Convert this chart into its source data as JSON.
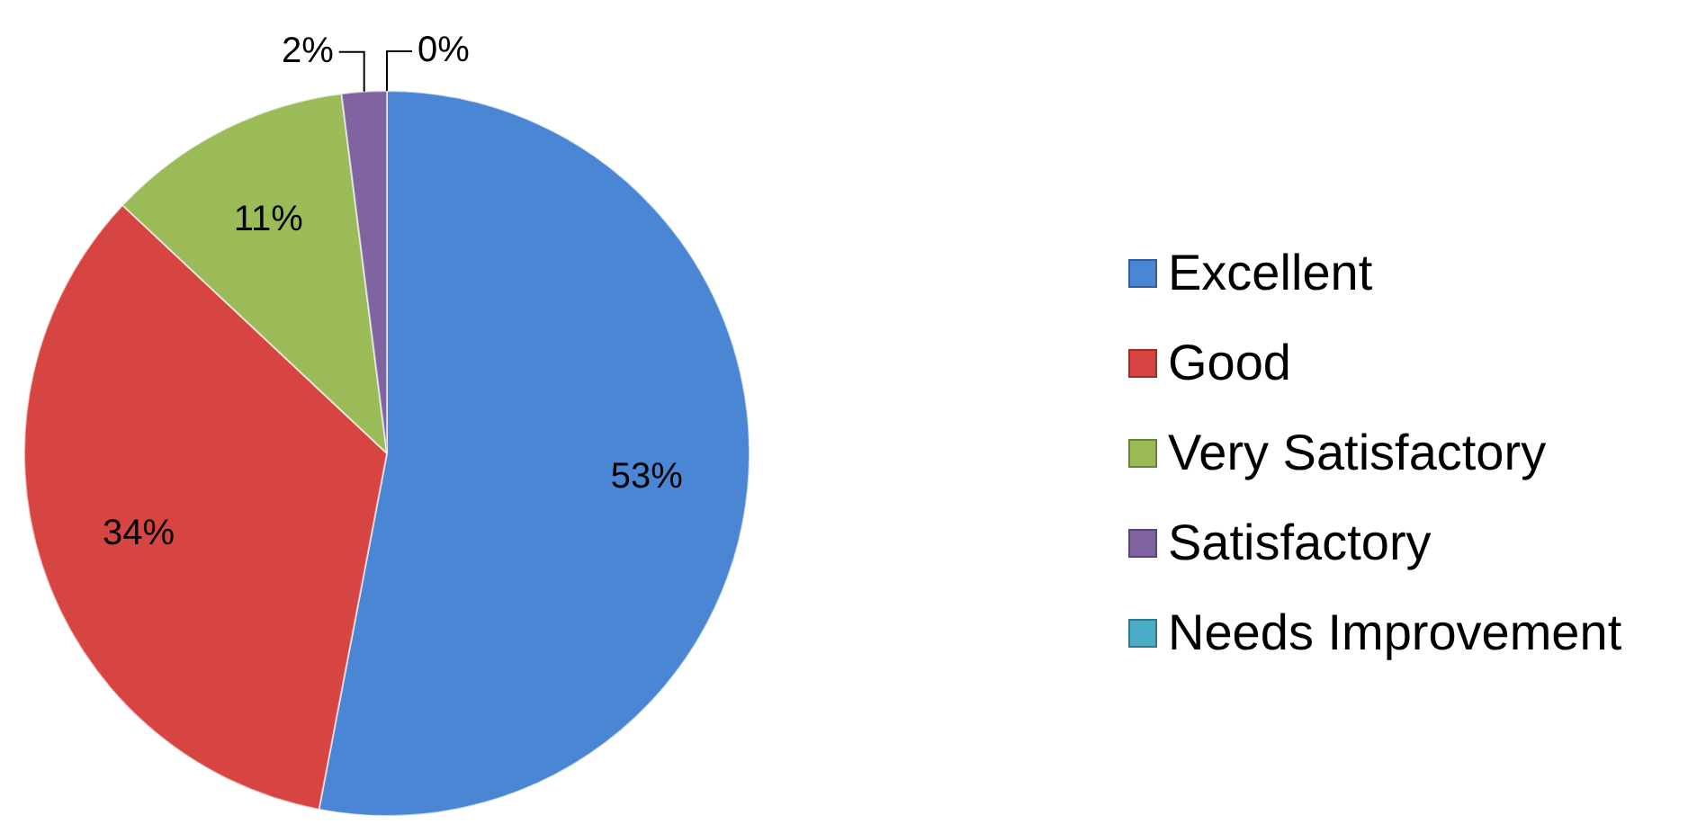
{
  "chart_data": {
    "type": "pie",
    "categories": [
      "Excellent",
      "Good",
      "Very Satisfactory",
      "Satisfactory",
      "Needs Improvement"
    ],
    "values": [
      53,
      34,
      11,
      2,
      0
    ],
    "colors": [
      "#4a86d4",
      "#d64541",
      "#9bbb59",
      "#8064a2",
      "#4bacc6"
    ],
    "value_labels": [
      "53%",
      "34%",
      "11%",
      "2%",
      "0%"
    ],
    "legend": "right"
  }
}
